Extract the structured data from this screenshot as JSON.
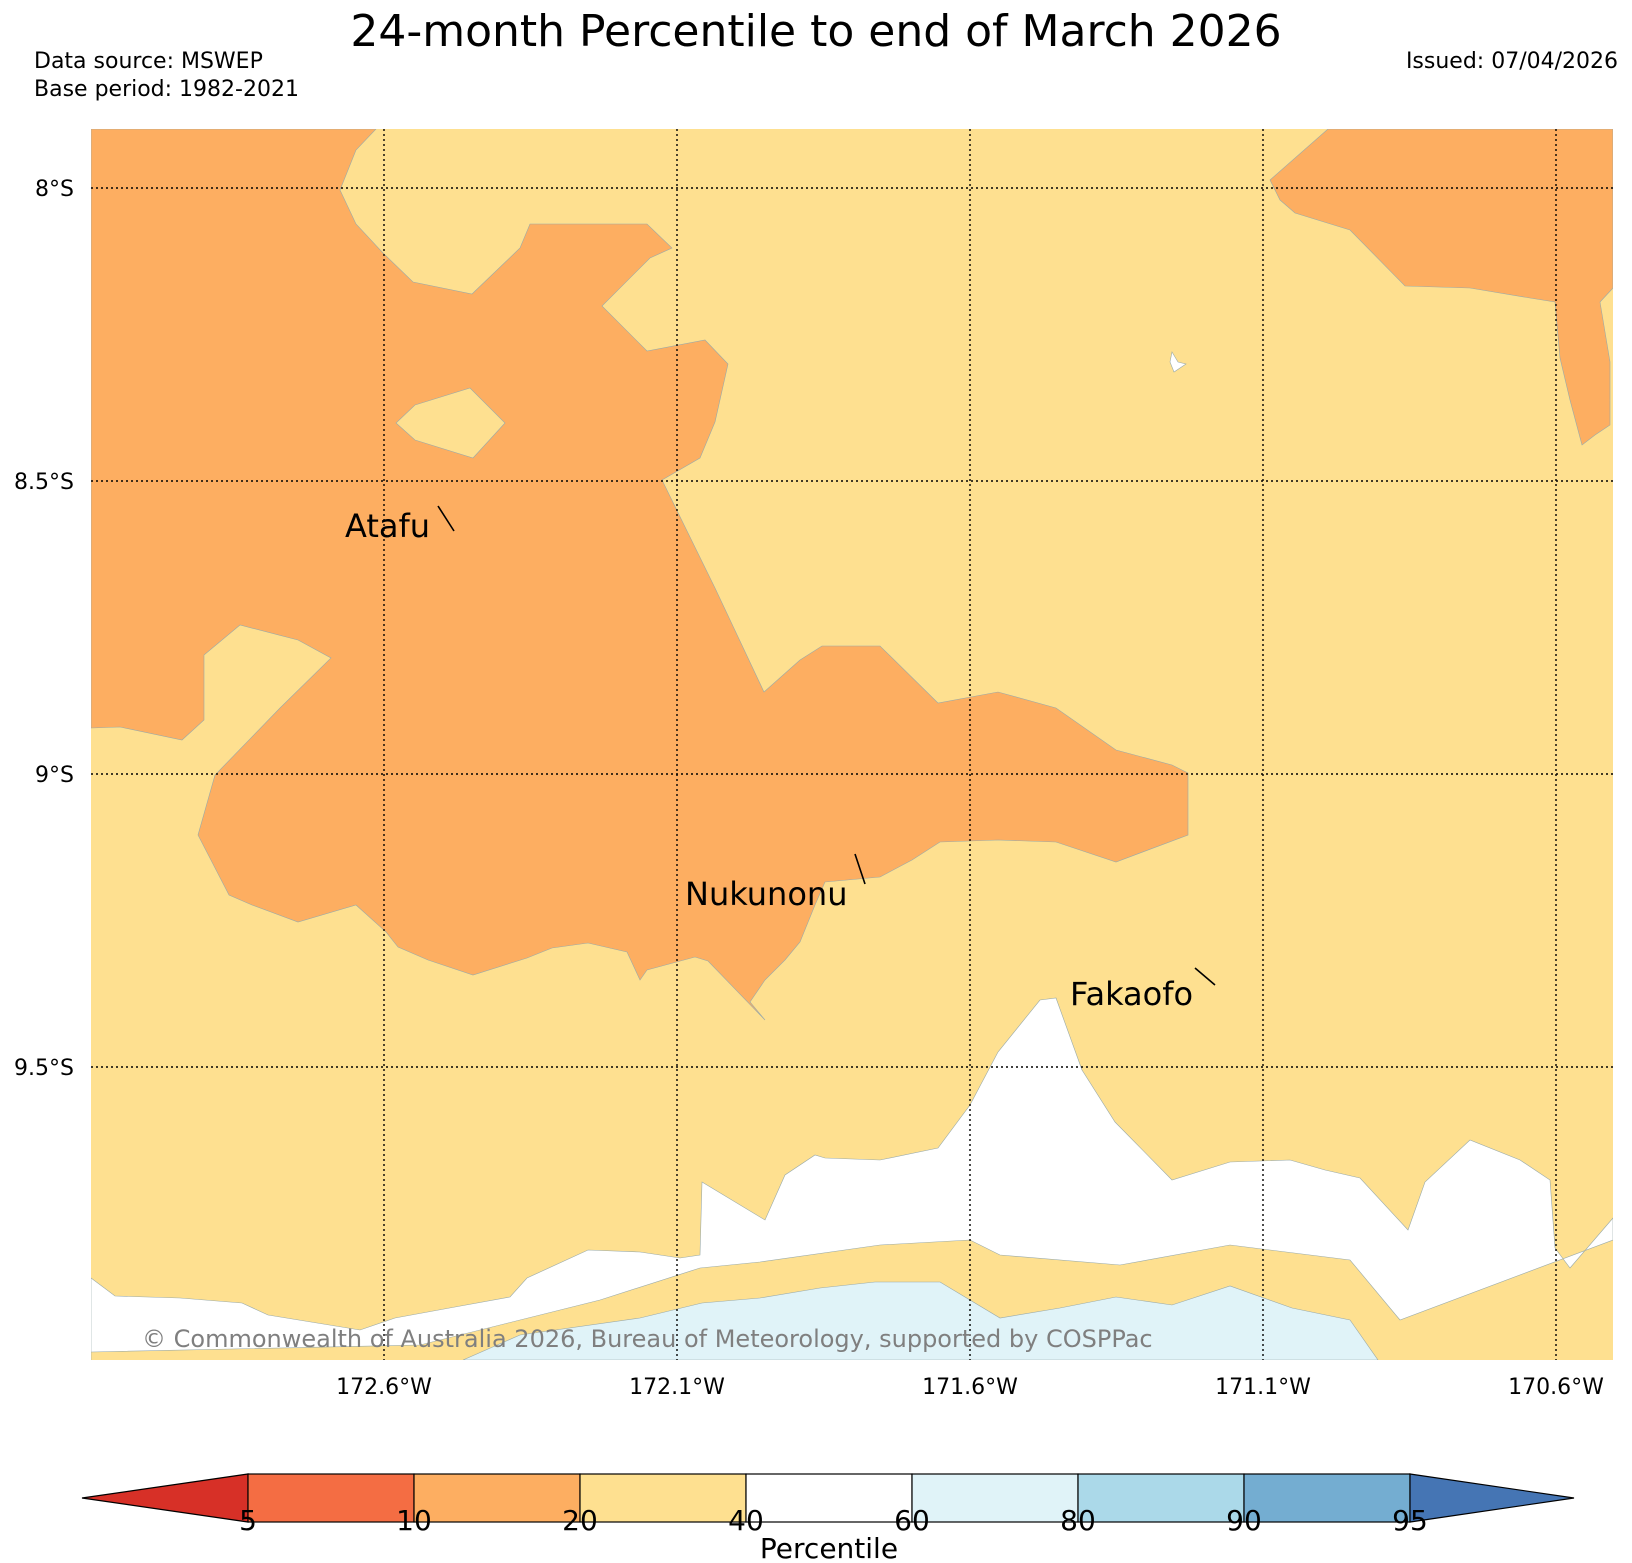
{
  "title": "24-month Percentile to end of March 2026",
  "data_source": "Data source: MSWEP",
  "base_period": "Base period: 1982-2021",
  "issued": "Issued: 07/04/2026",
  "copyright": "© Commonwealth of Australia 2026, Bureau of Meteorology, supported by COSPPac",
  "map": {
    "lat_labels": [
      "8°S",
      "8.5°S",
      "9°S",
      "9.5°S"
    ],
    "lon_labels": [
      "172.6°W",
      "172.1°W",
      "171.6°W",
      "171.1°W",
      "170.6°W"
    ],
    "places": [
      "Atafu",
      "Nukunonu",
      "Fakaofo"
    ]
  },
  "legend": {
    "title": "Percentile",
    "ticks": [
      "5",
      "10",
      "20",
      "40",
      "60",
      "80",
      "90",
      "95"
    ],
    "colors": [
      "#d73027",
      "#f46d43",
      "#fdae61",
      "#fee090",
      "#ffffff",
      "#e0f3f8",
      "#abd9e9",
      "#74add1",
      "#4575b4"
    ]
  },
  "colors": {
    "below_10_20": "#fdae61",
    "below_20_40": "#fee090",
    "normal_40_60": "#ffffff",
    "above_60_80": "#e0f3f8"
  }
}
